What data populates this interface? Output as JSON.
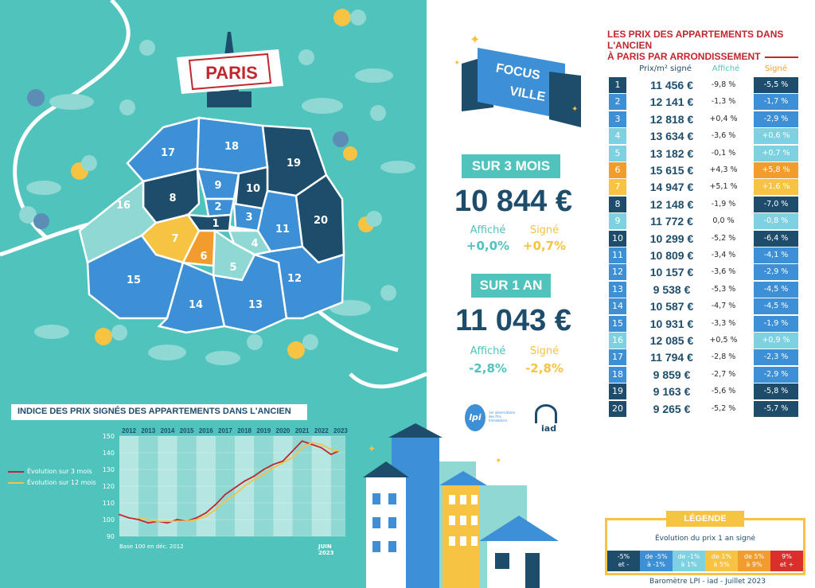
{
  "city_banner": "PARIS",
  "focus_banner": {
    "line1": "FOCUS",
    "line2": "VILLE"
  },
  "arrondissement_labels": [
    "1",
    "2",
    "3",
    "4",
    "5",
    "6",
    "7",
    "8",
    "9",
    "10",
    "11",
    "12",
    "13",
    "14",
    "15",
    "16",
    "17",
    "18",
    "19",
    "20"
  ],
  "stat_3_mois": {
    "band": "SUR 3 MOIS",
    "value": "10 844 €",
    "affiche_label": "Affiché",
    "signe_label": "Signé",
    "affiche_value": "+0,0%",
    "signe_value": "+0,7%"
  },
  "stat_1_an": {
    "band": "SUR 1 AN",
    "value": "11 043 €",
    "affiche_label": "Affiché",
    "signe_label": "Signé",
    "affiche_value": "-2,8%",
    "signe_value": "-2,8%"
  },
  "logos": {
    "lpi_mark": "lpi",
    "lpi_text": "1er observatoire des Prix Immobiliers",
    "iad": "iad"
  },
  "table": {
    "title_line1": "LES PRIX DES APPARTEMENTS DANS L'ANCIEN",
    "title_line2": "À PARIS PAR ARRONDISSEMENT",
    "col_prix": "Prix/m² signé",
    "col_affiche": "Affiché",
    "col_signe": "Signé",
    "rows": [
      {
        "n": "1",
        "prix": "11 456 €",
        "affiche": "-9,8 %",
        "signe": "-5,5 %",
        "color": "#1e4d6b",
        "num_color": "#1e4d6b"
      },
      {
        "n": "2",
        "prix": "12 141 €",
        "affiche": "-1,3 %",
        "signe": "-1,7 %",
        "color": "#3d8fd6",
        "num_color": "#3d8fd6"
      },
      {
        "n": "3",
        "prix": "12 818 €",
        "affiche": "+0,4 %",
        "signe": "-2,9 %",
        "color": "#3d8fd6",
        "num_color": "#3d8fd6"
      },
      {
        "n": "4",
        "prix": "13 634 €",
        "affiche": "-3,6 %",
        "signe": "+0,6 %",
        "color": "#7dd1e0",
        "num_color": "#7dd1e0"
      },
      {
        "n": "5",
        "prix": "13 182 €",
        "affiche": "-0,1 %",
        "signe": "+0,7 %",
        "color": "#7dd1e0",
        "num_color": "#7dd1e0"
      },
      {
        "n": "6",
        "prix": "15 615 €",
        "affiche": "+4,3 %",
        "signe": "+5,8 %",
        "color": "#f39c2e",
        "num_color": "#f39c2e"
      },
      {
        "n": "7",
        "prix": "14 947 €",
        "affiche": "+5,1 %",
        "signe": "+1,6 %",
        "color": "#f6c343",
        "num_color": "#f6c343"
      },
      {
        "n": "8",
        "prix": "12 148 €",
        "affiche": "-1,9 %",
        "signe": "-7,0 %",
        "color": "#1e4d6b",
        "num_color": "#1e4d6b"
      },
      {
        "n": "9",
        "prix": "11 772 €",
        "affiche": "0,0 %",
        "signe": "-0,8 %",
        "color": "#7dd1e0",
        "num_color": "#7dd1e0"
      },
      {
        "n": "10",
        "prix": "10 299 €",
        "affiche": "-5,2 %",
        "signe": "-6,4 %",
        "color": "#1e4d6b",
        "num_color": "#1e4d6b"
      },
      {
        "n": "11",
        "prix": "10 809 €",
        "affiche": "-3,4 %",
        "signe": "-4,1 %",
        "color": "#3d8fd6",
        "num_color": "#3d8fd6"
      },
      {
        "n": "12",
        "prix": "10 157 €",
        "affiche": "-3,6 %",
        "signe": "-2,9 %",
        "color": "#3d8fd6",
        "num_color": "#3d8fd6"
      },
      {
        "n": "13",
        "prix": "9 538 €",
        "affiche": "-5,3 %",
        "signe": "-4,5 %",
        "color": "#3d8fd6",
        "num_color": "#3d8fd6"
      },
      {
        "n": "14",
        "prix": "10 587 €",
        "affiche": "-4,7 %",
        "signe": "-4,5 %",
        "color": "#3d8fd6",
        "num_color": "#3d8fd6"
      },
      {
        "n": "15",
        "prix": "10 931 €",
        "affiche": "-3,3 %",
        "signe": "-1,9 %",
        "color": "#3d8fd6",
        "num_color": "#3d8fd6"
      },
      {
        "n": "16",
        "prix": "12 085 €",
        "affiche": "+0,5 %",
        "signe": "+0,9 %",
        "color": "#7dd1e0",
        "num_color": "#7dd1e0"
      },
      {
        "n": "17",
        "prix": "11 794 €",
        "affiche": "-2,8 %",
        "signe": "-2,3 %",
        "color": "#3d8fd6",
        "num_color": "#3d8fd6"
      },
      {
        "n": "18",
        "prix": "9 859 €",
        "affiche": "-2,7 %",
        "signe": "-2,9 %",
        "color": "#3d8fd6",
        "num_color": "#3d8fd6"
      },
      {
        "n": "19",
        "prix": "9 163 €",
        "affiche": "-5,6 %",
        "signe": "-5,8 %",
        "color": "#1e4d6b",
        "num_color": "#1e4d6b"
      },
      {
        "n": "20",
        "prix": "9 265 €",
        "affiche": "-5,2 %",
        "signe": "-5,7 %",
        "color": "#1e4d6b",
        "num_color": "#1e4d6b"
      }
    ]
  },
  "legend": {
    "band": "LÉGENDE",
    "subtitle": "Évolution du prix 1 an signé",
    "cells": [
      {
        "text": "-5%\net -",
        "color": "#1e4d6b"
      },
      {
        "text": "de -5%\nà -1%",
        "color": "#3d8fd6"
      },
      {
        "text": "de -1%\nà 1%",
        "color": "#7dd1e0"
      },
      {
        "text": "de 1%\nà 5%",
        "color": "#f6c343"
      },
      {
        "text": "de 5%\nà 9%",
        "color": "#f39c2e"
      },
      {
        "text": "9%\net +",
        "color": "#d9302b"
      }
    ]
  },
  "footer": "Baromètre LPI - iad - Juillet 2023",
  "colors": {
    "teal": "#4fc3bc",
    "navy": "#1e4d6b",
    "blue": "#3d8fd6",
    "light": "#7dd1e0",
    "yellow": "#f6c343",
    "orange": "#f39c2e",
    "red": "#c1272d"
  },
  "chart_data": {
    "type": "line",
    "title": "INDICE DES PRIX SIGNÉS DES APPARTEMENTS DANS L'ANCIEN",
    "x_tick_labels": [
      "2012",
      "2013",
      "2014",
      "2015",
      "2016",
      "2017",
      "2018",
      "2019",
      "2020",
      "2021",
      "2022",
      "2023"
    ],
    "ylim": [
      90,
      150
    ],
    "y_ticks": [
      90,
      100,
      110,
      120,
      130,
      140,
      150
    ],
    "footnote": "Base 100 en déc. 2012",
    "date_label": "JUIN 2023",
    "x": [
      2012.0,
      2012.5,
      2013.0,
      2013.5,
      2014.0,
      2014.5,
      2015.0,
      2015.5,
      2016.0,
      2016.5,
      2017.0,
      2017.5,
      2018.0,
      2018.5,
      2019.0,
      2019.5,
      2020.0,
      2020.5,
      2021.0,
      2021.5,
      2022.0,
      2022.5,
      2023.0,
      2023.4
    ],
    "series": [
      {
        "name": "Évolution sur 3 mois",
        "color": "#c1272d",
        "values": [
          103,
          101,
          100,
          98,
          99,
          98,
          100,
          99,
          101,
          104,
          109,
          115,
          119,
          123,
          126,
          130,
          133,
          135,
          141,
          147,
          145,
          143,
          139,
          141
        ]
      },
      {
        "name": "Évolution sur 12 mois",
        "color": "#f6c343",
        "values": [
          null,
          null,
          101,
          100,
          99,
          99,
          99,
          99,
          100,
          102,
          106,
          111,
          115,
          120,
          124,
          127,
          131,
          134,
          137,
          143,
          146,
          145,
          142,
          141
        ]
      }
    ]
  }
}
